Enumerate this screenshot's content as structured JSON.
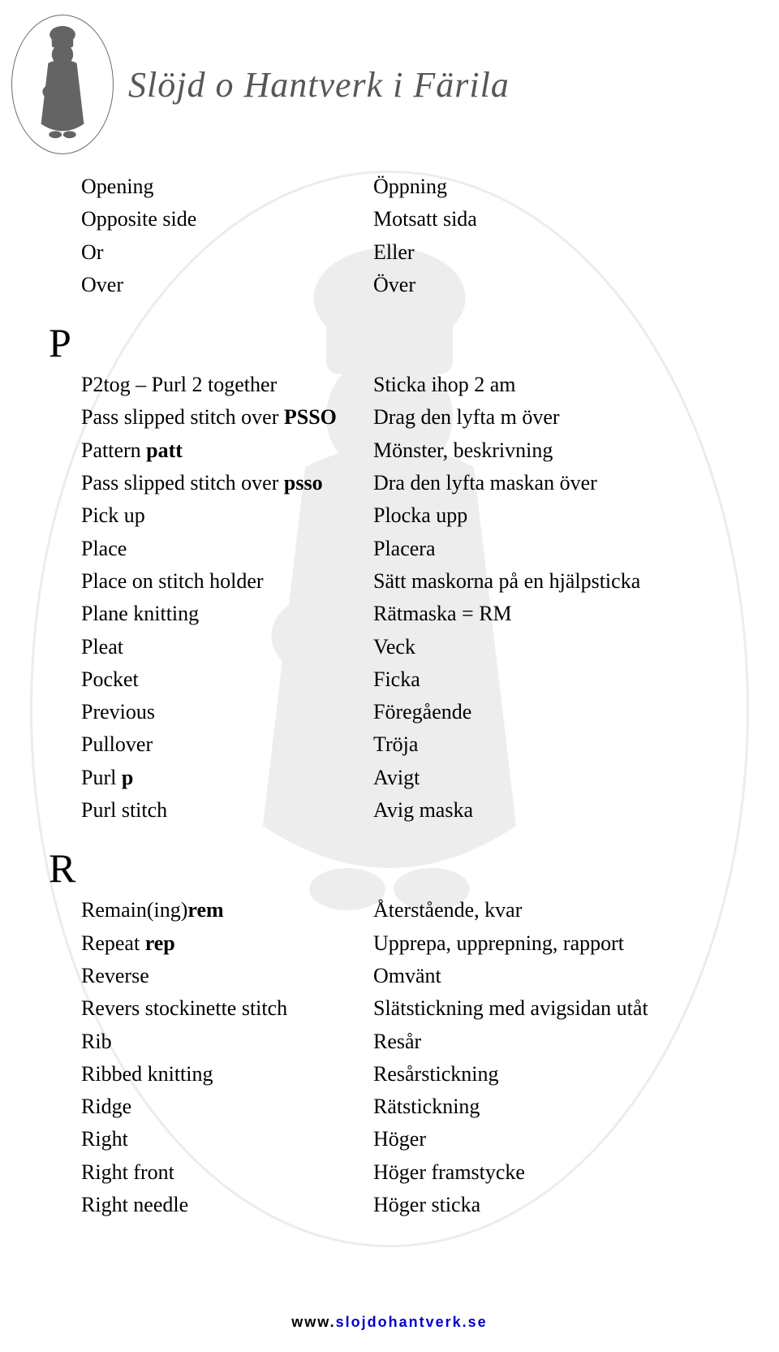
{
  "site_title": "Slöjd o Hantverk i Färila",
  "footer_prefix": "www.",
  "footer_link": "slojdohantverk.se",
  "sections": {
    "O_tail": [
      {
        "en": "Opening",
        "sv": "Öppning"
      },
      {
        "en": "Opposite side",
        "sv": "Motsatt sida"
      },
      {
        "en": "Or",
        "sv": "Eller"
      },
      {
        "en": "Over",
        "sv": "Över"
      }
    ],
    "P": {
      "letter": "P",
      "rows": [
        {
          "en_pre": "P2tog – Purl 2 together",
          "sv": "Sticka ihop 2 am"
        },
        {
          "en_pre": "Pass slipped stitch over ",
          "en_bold": "PSSO",
          "sv": "Drag den lyfta m över"
        },
        {
          "en_pre": "Pattern ",
          "en_bold": "patt",
          "sv": "Mönster, beskrivning"
        },
        {
          "en_pre": "Pass slipped stitch over ",
          "en_bold": "psso",
          "sv": "Dra den lyfta maskan över"
        },
        {
          "en_pre": "Pick up",
          "sv": "Plocka upp"
        },
        {
          "en_pre": "Place",
          "sv": "Placera"
        },
        {
          "en_pre": "Place on stitch holder",
          "sv": "Sätt maskorna på en hjälpsticka"
        },
        {
          "en_pre": "Plane knitting",
          "sv": "Rätmaska = RM"
        },
        {
          "en_pre": "Pleat",
          "sv": "Veck"
        },
        {
          "en_pre": "Pocket",
          "sv": "Ficka"
        },
        {
          "en_pre": "Previous",
          "sv": "Föregående"
        },
        {
          "en_pre": "Pullover",
          "sv": "Tröja"
        },
        {
          "en_pre": "Purl ",
          "en_bold": "p",
          "sv": "Avigt"
        },
        {
          "en_pre": "Purl stitch",
          "sv": "Avig maska"
        }
      ]
    },
    "R": {
      "letter": "R",
      "rows": [
        {
          "en_pre": "Remain(ing)",
          "en_bold": "rem",
          "sv": "Återstående, kvar"
        },
        {
          "en_pre": "Repeat ",
          "en_bold": "rep",
          "sv": "Upprepa, upprepning, rapport"
        },
        {
          "en_pre": "Reverse",
          "sv": "Omvänt"
        },
        {
          "en_pre": "Revers stockinette stitch",
          "sv": "Slätstickning med avigsidan utåt"
        },
        {
          "en_pre": "Rib",
          "sv": "Resår"
        },
        {
          "en_pre": "Ribbed knitting",
          "sv": "Resårstickning"
        },
        {
          "en_pre": "Ridge",
          "sv": "Rätstickning"
        },
        {
          "en_pre": "Right",
          "sv": "Höger"
        },
        {
          "en_pre": "Right front",
          "sv": "Höger framstycke"
        },
        {
          "en_pre": "Right needle",
          "sv": "Höger sticka"
        }
      ]
    }
  }
}
